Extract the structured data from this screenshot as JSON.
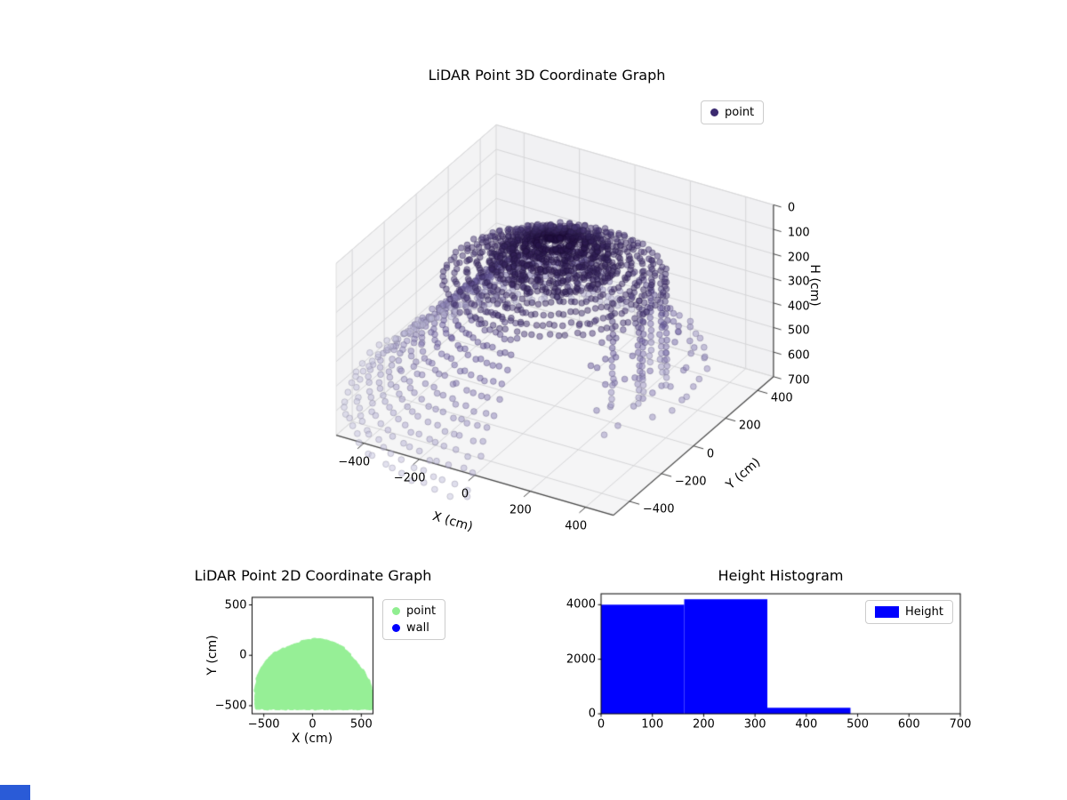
{
  "page": {
    "background": "#ffffff",
    "bottom_strip": {
      "color": "#2a5bd7"
    }
  },
  "chart_data": [
    {
      "id": "lidar-3d",
      "type": "scatter",
      "projection": "3d",
      "title": "LiDAR Point 3D Coordinate Graph",
      "xlabel": "X (cm)",
      "ylabel": "Y (cm)",
      "zlabel": "H (cm)",
      "xlim": [
        -500,
        500
      ],
      "ylim": [
        -500,
        500
      ],
      "zlim": [
        0,
        700
      ],
      "z_axis_inverted": true,
      "xticks": [
        -400,
        -200,
        0,
        200,
        400
      ],
      "yticks": [
        -400,
        -200,
        0,
        200,
        400
      ],
      "zticks": [
        0,
        100,
        200,
        300,
        400,
        500,
        600,
        700
      ],
      "grid": true,
      "legend_position": "upper right",
      "legend": [
        {
          "label": "point",
          "color": "#3b2a70"
        }
      ],
      "colormap": {
        "by": "height",
        "domain": [
          0,
          700
        ],
        "stops": [
          "#231044",
          "#6c5ea2",
          "#c7c5df"
        ]
      },
      "point_style": {
        "radius_px": 3.4,
        "alpha": 0.5
      },
      "cloud_generators": {
        "dome_rings": {
          "rings": 10,
          "r_start": 24,
          "r_step": 36,
          "h_start": 6,
          "h_step": 20,
          "angle_step": 4.5
        },
        "dome_fill": {
          "n": 420,
          "r_max": 200,
          "h_slope": 0.55
        },
        "floor_fan_rings": {
          "rings": 14,
          "r_start": 210,
          "r_step": 34,
          "h_start": 190,
          "h_step": 40,
          "h_max": 692,
          "angle_start": 98,
          "angle_end": 276,
          "angle_step": 4.2
        },
        "right_arcs": {
          "rings": 6,
          "r_start": 250,
          "r_step": 45,
          "h_start": 210,
          "h_step": 60,
          "angle_start": -42,
          "angle_end": 58,
          "angle_step": 5.5,
          "dropout": 0.3
        },
        "streaks": {
          "count": 6,
          "angle_start": -20,
          "angle_step": 12,
          "r_base": 280,
          "h_start": 140,
          "h_end": 560,
          "h_step": 26
        }
      }
    },
    {
      "id": "lidar-2d",
      "type": "scatter",
      "title": "LiDAR Point 2D Coordinate Graph",
      "xlabel": "X (cm)",
      "ylabel": "Y (cm)",
      "xlim": [
        -620,
        620
      ],
      "ylim": [
        -580,
        575
      ],
      "xticks": [
        -500,
        0,
        500
      ],
      "yticks": [
        500,
        0,
        -500
      ],
      "legend_position": "upper right outside",
      "legend": [
        {
          "label": "point",
          "color": "#90ee90"
        },
        {
          "label": "wall",
          "color": "#0000ff"
        }
      ],
      "blob": {
        "center": [
          0,
          -450
        ],
        "radius": 600,
        "y_clip_min": -522,
        "gaps": [
          [
            266,
            274,
            170
          ],
          [
            288,
            298,
            200
          ],
          [
            304,
            310,
            330
          ]
        ]
      }
    },
    {
      "id": "height-histogram",
      "type": "bar",
      "title": "Height Histogram",
      "xlabel": "",
      "ylabel": "",
      "bin_edges": [
        0,
        162,
        324,
        486
      ],
      "counts": [
        4000,
        4200,
        220
      ],
      "xlim": [
        0,
        700
      ],
      "ylim": [
        0,
        4400
      ],
      "xticks": [
        0,
        100,
        200,
        300,
        400,
        500,
        600,
        700
      ],
      "yticks": [
        0,
        2000,
        4000
      ],
      "bar_color": "#0000ff",
      "legend_position": "upper right",
      "legend": [
        {
          "label": "Height",
          "color": "#0000ff"
        }
      ]
    }
  ]
}
